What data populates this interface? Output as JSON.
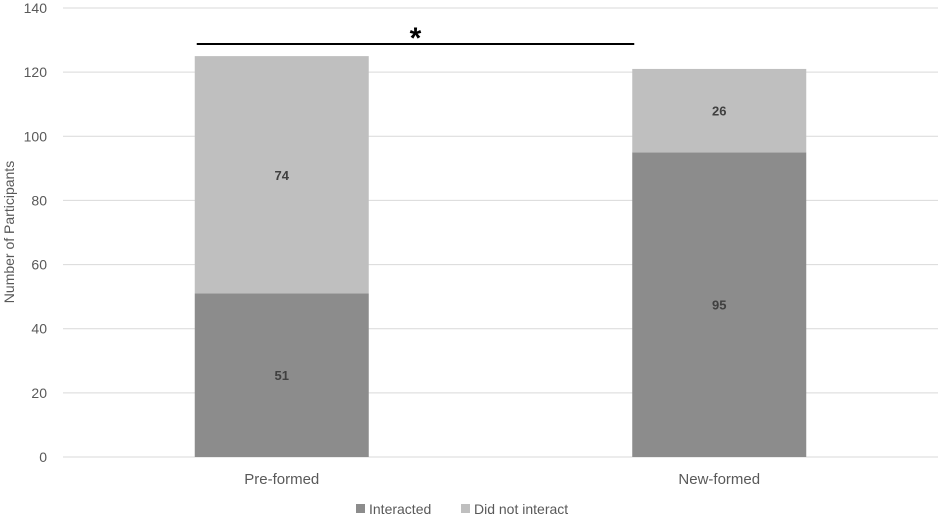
{
  "chart_data": {
    "type": "bar",
    "stacked": true,
    "categories": [
      "Pre-formed",
      "New-formed"
    ],
    "series": [
      {
        "name": "Interacted",
        "values": [
          51,
          95
        ],
        "color": "#8c8c8c"
      },
      {
        "name": "Did not interact",
        "values": [
          74,
          26
        ],
        "color": "#bfbfbf"
      }
    ],
    "ylabel": "Number of Participants",
    "xlabel": "",
    "title": "",
    "ylim": [
      0,
      140
    ],
    "yticks": [
      0,
      20,
      40,
      60,
      80,
      100,
      120,
      140
    ],
    "grid": true,
    "legend": "bottom-center",
    "annotations": [
      {
        "type": "significance-bracket",
        "between": [
          "Pre-formed",
          "New-formed"
        ],
        "label": "*"
      }
    ]
  }
}
